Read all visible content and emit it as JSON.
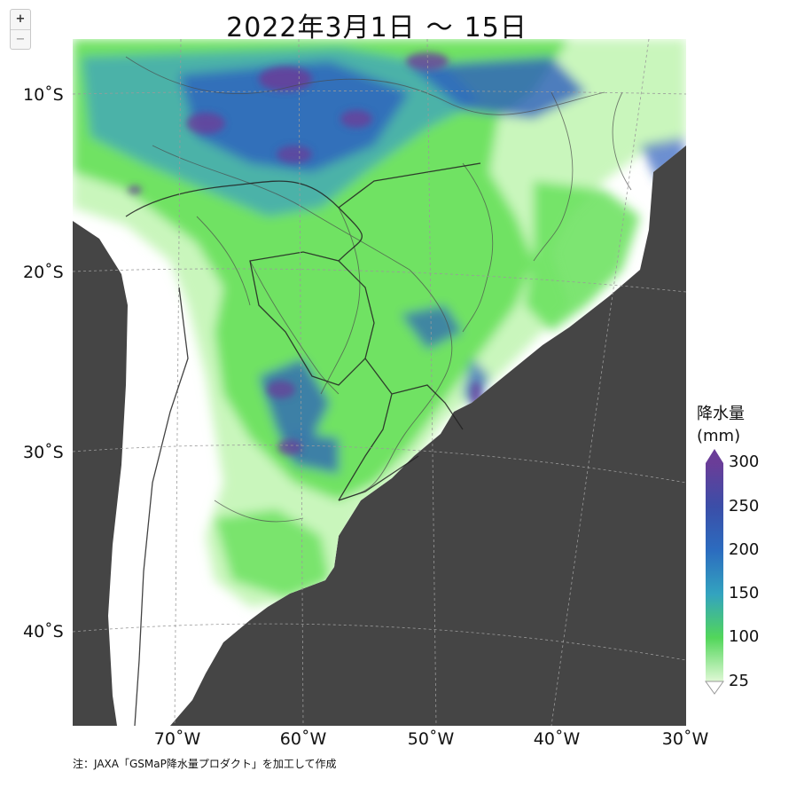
{
  "zoom_controls": {
    "zoom_in": "+",
    "zoom_out": "−"
  },
  "title": {
    "date_start": "2022年3月1日",
    "separator": "〜",
    "date_end": "15日"
  },
  "map": {
    "type": "precipitation-map",
    "region": "South America",
    "lat_labels": [
      "10˚S",
      "20˚S",
      "30˚S",
      "40˚S"
    ],
    "lon_labels": [
      "70˚W",
      "60˚W",
      "50˚W",
      "40˚W",
      "30˚W"
    ],
    "colors": {
      "ocean": "#454545",
      "land": "#ffffff",
      "light_green": "#c6f5b8",
      "green": "#66e05a",
      "teal": "#3fa2c0",
      "blue": "#2d5fbe",
      "purple": "#6a3d98"
    }
  },
  "legend": {
    "title_line1": "降水量",
    "title_line2": "(mm)",
    "ticks": [
      "300",
      "250",
      "200",
      "150",
      "100",
      "25"
    ],
    "stops": [
      "#6a3d98",
      "#3b4ea8",
      "#2c6cbf",
      "#33a3bf",
      "#52d65a",
      "#dff8d5"
    ]
  },
  "note": "注：JAXA「GSMaP降水量プロダクト」を加工して作成"
}
